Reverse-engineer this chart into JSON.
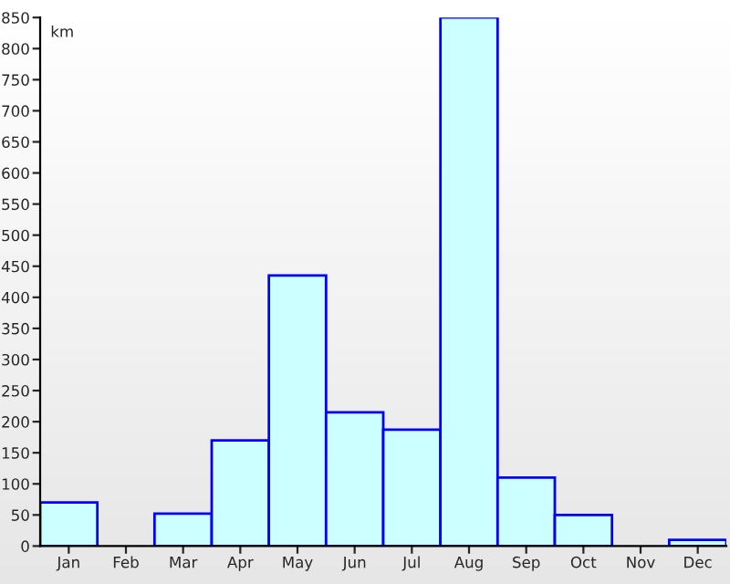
{
  "chart_data": {
    "type": "bar",
    "ylabel": "km",
    "categories": [
      "Jan",
      "Feb",
      "Mar",
      "Apr",
      "May",
      "Jun",
      "Jul",
      "Aug",
      "Sep",
      "Oct",
      "Nov",
      "Dec"
    ],
    "values": [
      70,
      0,
      52,
      170,
      435,
      215,
      187,
      850,
      110,
      50,
      0,
      10
    ],
    "color": "#ccffff",
    "ylim": [
      0,
      850
    ],
    "yticks": [
      0,
      50,
      100,
      150,
      200,
      250,
      300,
      350,
      400,
      450,
      500,
      550,
      600,
      650,
      700,
      750,
      800,
      850
    ],
    "grid": false
  }
}
